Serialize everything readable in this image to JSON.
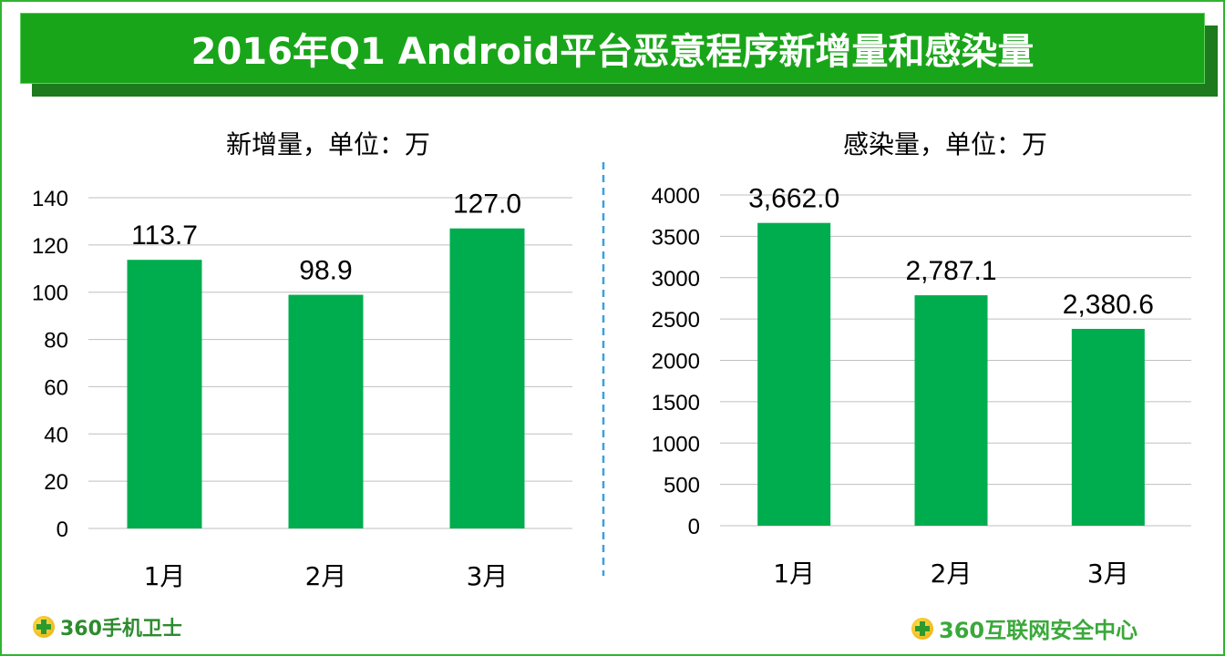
{
  "title": "2016年Q1 Android平台恶意程序新增量和感染量",
  "colors": {
    "bar": "#00ad4e",
    "banner": "#19a519",
    "divider": "#3aa0e0",
    "grid": "#bfbfbf"
  },
  "logos": {
    "left": "360手机卫士",
    "right": "360互联网安全中心"
  },
  "chart_data": [
    {
      "type": "bar",
      "title": "新增量，单位：万",
      "categories": [
        "1月",
        "2月",
        "3月"
      ],
      "values": [
        113.7,
        98.9,
        127.0
      ],
      "value_labels": [
        "113.7",
        "98.9",
        "127.0"
      ],
      "ylim": [
        0,
        140
      ],
      "yticks": [
        0,
        20,
        40,
        60,
        80,
        100,
        120,
        140
      ],
      "grid": true
    },
    {
      "type": "bar",
      "title": "感染量，单位：万",
      "categories": [
        "1月",
        "2月",
        "3月"
      ],
      "values": [
        3662.0,
        2787.1,
        2380.6
      ],
      "value_labels": [
        "3,662.0",
        "2,787.1",
        "2,380.6"
      ],
      "ylim": [
        0,
        4000
      ],
      "yticks": [
        0,
        500,
        1000,
        1500,
        2000,
        2500,
        3000,
        3500,
        4000
      ],
      "grid": true
    }
  ]
}
